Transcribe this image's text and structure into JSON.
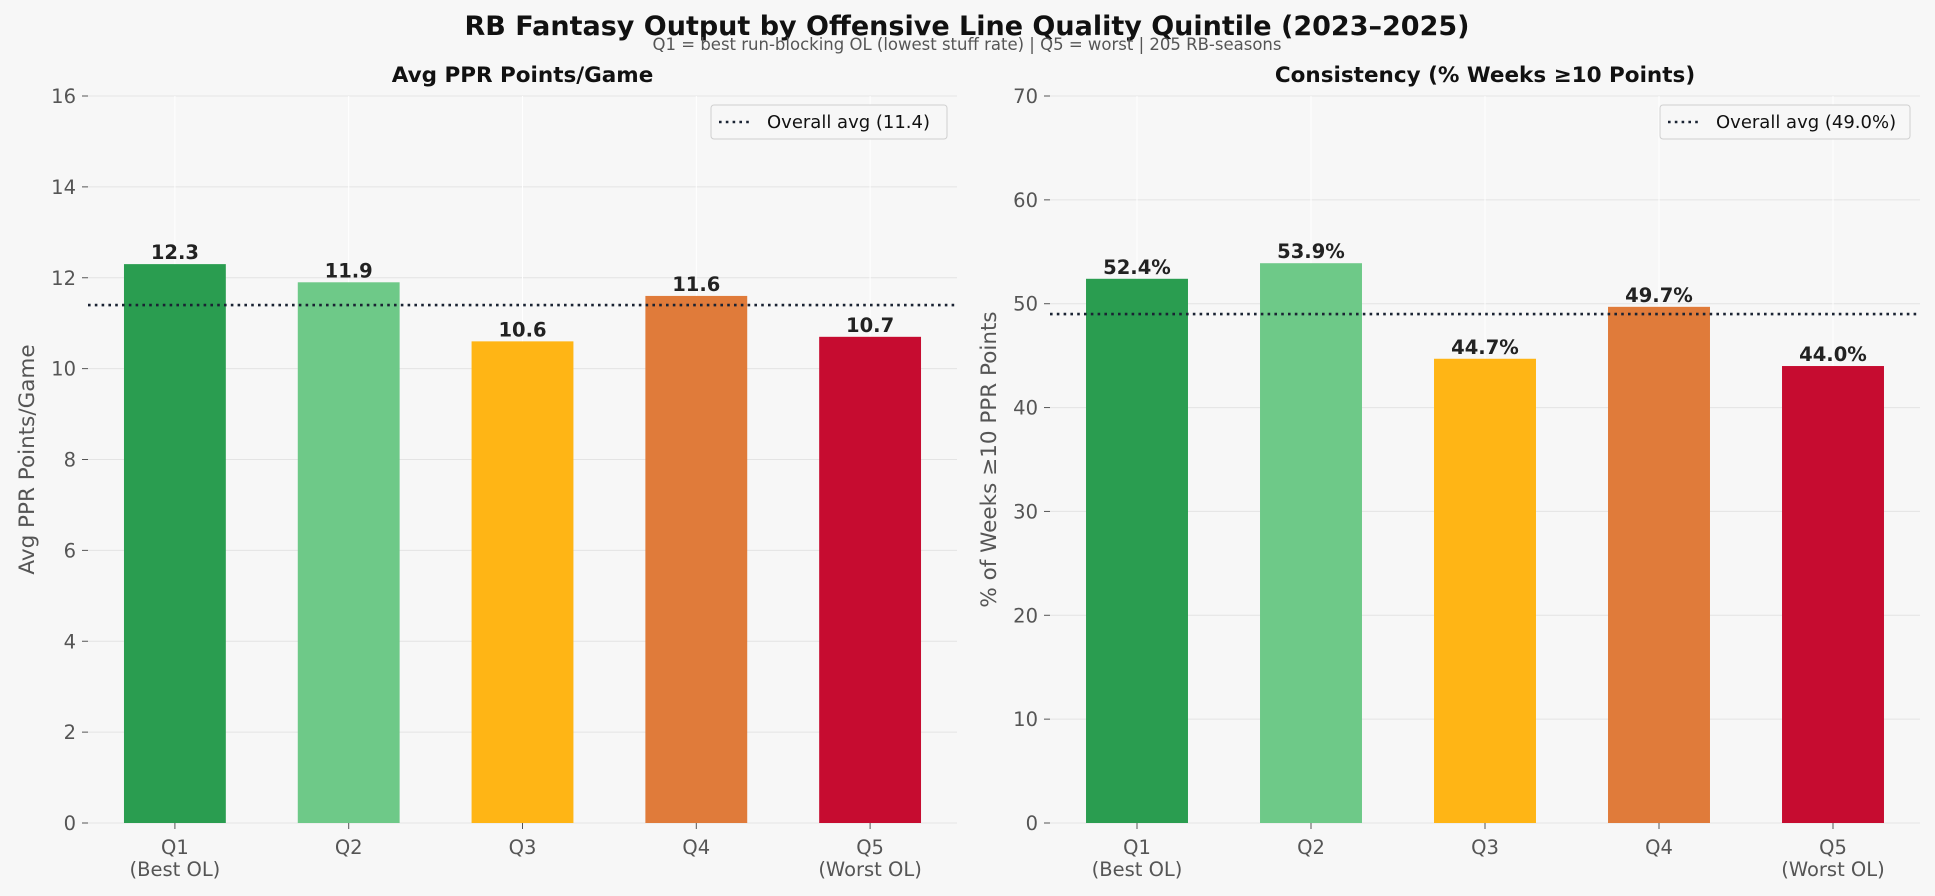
{
  "figure": {
    "title": "RB Fantasy Output by Offensive Line Quality Quintile (2023–2025)",
    "subtitle": "Q1 = best run-blocking OL (lowest stuff rate)  |  Q5 = worst  |  205 RB-seasons"
  },
  "chart_data": [
    {
      "type": "bar",
      "title": "Avg PPR Points/Game",
      "xlabel": "",
      "ylabel": "Avg PPR Points/Game",
      "categories": [
        "Q1\n(Best OL)",
        "Q2",
        "Q3",
        "Q4",
        "Q5\n(Worst OL)"
      ],
      "values": [
        12.3,
        11.9,
        10.6,
        11.6,
        10.7
      ],
      "value_labels": [
        "12.3",
        "11.9",
        "10.6",
        "11.6",
        "10.7"
      ],
      "colors": [
        "#2a9d50",
        "#6ec988",
        "#ffb515",
        "#e07b3a",
        "#c60c30"
      ],
      "ylim": [
        0,
        16
      ],
      "yticks": [
        0,
        2,
        4,
        6,
        8,
        10,
        12,
        14,
        16
      ],
      "reference_line": {
        "value": 11.4,
        "label": "Overall avg (11.4)",
        "style": "dotted",
        "color": "#1a2333"
      },
      "legend_position": "top-right",
      "grid": true
    },
    {
      "type": "bar",
      "title": "Consistency (% Weeks ≥10 Points)",
      "xlabel": "",
      "ylabel": "% of Weeks ≥10 PPR Points",
      "categories": [
        "Q1\n(Best OL)",
        "Q2",
        "Q3",
        "Q4",
        "Q5\n(Worst OL)"
      ],
      "values": [
        52.4,
        53.9,
        44.7,
        49.7,
        44.0
      ],
      "value_labels": [
        "52.4%",
        "53.9%",
        "44.7%",
        "49.7%",
        "44.0%"
      ],
      "colors": [
        "#2a9d50",
        "#6ec988",
        "#ffb515",
        "#e07b3a",
        "#c60c30"
      ],
      "ylim": [
        0,
        70
      ],
      "yticks": [
        0,
        10,
        20,
        30,
        40,
        50,
        60,
        70
      ],
      "reference_line": {
        "value": 49.0,
        "label": "Overall avg (49.0%)",
        "style": "dotted",
        "color": "#1a2333"
      },
      "legend_position": "top-right",
      "grid": true
    }
  ]
}
